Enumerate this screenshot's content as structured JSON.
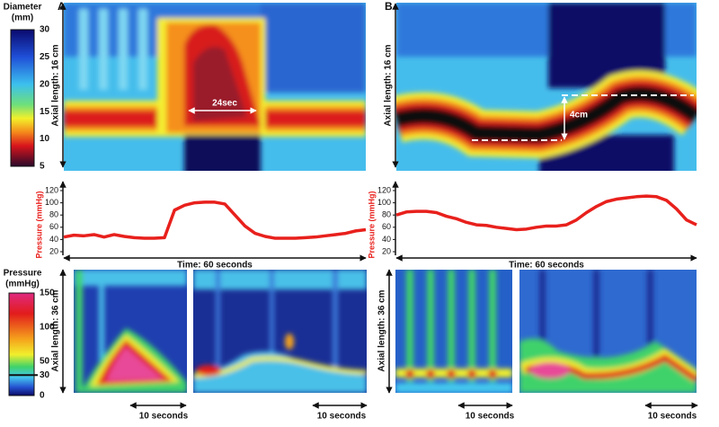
{
  "chart_data": [
    {
      "type": "line",
      "panel": "A",
      "ylabel": "Pressure (mmHg)",
      "xlabel": "Time: 60 seconds",
      "color": "#e8201c",
      "x": [
        0,
        2,
        4,
        6,
        8,
        10,
        12,
        14,
        16,
        18,
        20,
        22,
        24,
        26,
        28,
        30,
        32,
        34,
        36,
        38,
        40,
        42,
        44,
        46,
        48,
        50,
        52,
        54,
        56,
        58,
        60
      ],
      "values": [
        44,
        47,
        46,
        48,
        44,
        48,
        45,
        43,
        42,
        42,
        43,
        88,
        96,
        100,
        101,
        101,
        98,
        80,
        62,
        50,
        45,
        42,
        42,
        42,
        43,
        44,
        46,
        48,
        50,
        54,
        56
      ],
      "xlim": [
        0,
        60
      ],
      "ylim": [
        20,
        120
      ],
      "yticks": [
        20,
        40,
        60,
        80,
        100,
        120
      ]
    },
    {
      "type": "line",
      "panel": "B",
      "ylabel": "Pressure (mmHg)",
      "xlabel": "Time: 60 seconds",
      "color": "#e8201c",
      "x": [
        0,
        2,
        4,
        6,
        8,
        10,
        12,
        14,
        16,
        18,
        20,
        22,
        24,
        26,
        28,
        30,
        32,
        34,
        36,
        38,
        40,
        42,
        44,
        46,
        48,
        50,
        52,
        54,
        56,
        58,
        60
      ],
      "values": [
        80,
        85,
        86,
        86,
        84,
        78,
        74,
        68,
        64,
        63,
        60,
        58,
        56,
        57,
        60,
        62,
        62,
        64,
        72,
        84,
        94,
        102,
        106,
        108,
        110,
        111,
        110,
        104,
        90,
        72,
        64
      ],
      "xlim": [
        0,
        60
      ],
      "ylim": [
        20,
        120
      ],
      "yticks": [
        20,
        40,
        60,
        80,
        100,
        120
      ]
    }
  ],
  "panel_labels": [
    "A",
    "B"
  ],
  "axial_labels_top": [
    "Axial length: 16 cm",
    "Axial length: 16 cm"
  ],
  "axial_labels_bottom": [
    "Axial length: 36 cm",
    "Axial length: 36 cm"
  ],
  "annotations": [
    "24sec",
    "4cm"
  ],
  "colorbars": [
    {
      "title_lines": [
        "Diameter",
        "(mm)"
      ],
      "lim": [
        5,
        30
      ],
      "ticks": [
        5,
        10,
        15,
        20,
        25,
        30
      ]
    },
    {
      "title_lines": [
        "Pressure",
        "(mmHg)"
      ],
      "lim": [
        0,
        150
      ],
      "ticks": [
        0,
        30,
        50,
        100,
        150
      ]
    }
  ],
  "scale_bar_labels": [
    "10 seconds",
    "10 seconds",
    "10 seconds",
    "10 seconds"
  ]
}
